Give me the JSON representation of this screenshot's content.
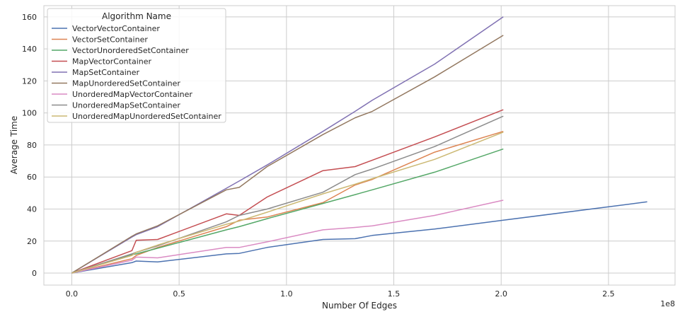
{
  "chart_data": {
    "type": "line",
    "xlabel": "Number Of Edges",
    "ylabel": "Average Time",
    "x_offset_label": "1e8",
    "xlim": [
      -0.13,
      2.81
    ],
    "ylim": [
      -7.5,
      167
    ],
    "x_ticks": [
      0.0,
      0.5,
      1.0,
      1.5,
      2.0,
      2.5
    ],
    "x_tick_labels": [
      "0.0",
      "0.5",
      "1.0",
      "1.5",
      "2.0",
      "2.5"
    ],
    "y_ticks": [
      0,
      20,
      40,
      60,
      80,
      100,
      120,
      140,
      160
    ],
    "y_tick_labels": [
      "0",
      "20",
      "40",
      "60",
      "80",
      "100",
      "120",
      "140",
      "160"
    ],
    "grid": true,
    "legend_title": "Algorithm Name",
    "legend_position": "top-left",
    "series": [
      {
        "name": "VectorVectorContainer",
        "color": "#4c72b0",
        "x": [
          0,
          0.28,
          0.3,
          0.4,
          0.72,
          0.78,
          0.91,
          1.17,
          1.32,
          1.4,
          1.69,
          2.01,
          2.68
        ],
        "y": [
          0,
          6.5,
          7.5,
          7,
          12,
          12.3,
          16,
          21,
          21.5,
          23.5,
          27.5,
          33,
          44.5
        ]
      },
      {
        "name": "VectorSetContainer",
        "color": "#dd8452",
        "x": [
          0,
          0.28,
          0.3,
          0.4,
          0.72,
          0.78,
          0.91,
          1.17,
          1.32,
          1.4,
          1.69,
          2.01
        ],
        "y": [
          0,
          9,
          11,
          16,
          29,
          33,
          35,
          44,
          55,
          58.5,
          75.5,
          88.5
        ]
      },
      {
        "name": "VectorUnorderedSetContainer",
        "color": "#55a868",
        "x": [
          0,
          0.28,
          0.3,
          0.4,
          0.72,
          0.78,
          0.91,
          1.17,
          1.32,
          1.4,
          1.69,
          2.01
        ],
        "y": [
          0,
          11.5,
          12,
          15.5,
          27,
          29,
          34,
          43.5,
          49,
          52,
          63,
          77.5
        ]
      },
      {
        "name": "MapVectorContainer",
        "color": "#c44e52",
        "x": [
          0,
          0.28,
          0.3,
          0.4,
          0.72,
          0.78,
          0.91,
          1.17,
          1.32,
          1.4,
          1.69,
          2.01
        ],
        "y": [
          0,
          14,
          20.5,
          21,
          37,
          36,
          47.5,
          64,
          66.5,
          70.5,
          85,
          102
        ]
      },
      {
        "name": "MapSetContainer",
        "color": "#8172b3",
        "x": [
          0,
          0.28,
          0.3,
          0.4,
          0.72,
          0.78,
          0.91,
          1.17,
          1.32,
          1.4,
          1.69,
          2.01
        ],
        "y": [
          0,
          22.5,
          24,
          29,
          53,
          57.5,
          67.5,
          88.5,
          101,
          108,
          130.5,
          160
        ]
      },
      {
        "name": "MapUnorderedSetContainer",
        "color": "#937860",
        "x": [
          0,
          0.28,
          0.3,
          0.4,
          0.72,
          0.78,
          0.91,
          1.17,
          1.32,
          1.4,
          1.69,
          2.01
        ],
        "y": [
          0,
          23,
          24.5,
          29.5,
          52,
          53.5,
          66.5,
          86.5,
          97,
          101,
          122.5,
          148.5
        ]
      },
      {
        "name": "UnorderedMapVectorContainer",
        "color": "#da8bc3",
        "x": [
          0,
          0.28,
          0.3,
          0.4,
          0.72,
          0.78,
          0.91,
          1.17,
          1.32,
          1.4,
          1.69,
          2.01
        ],
        "y": [
          0,
          8,
          10,
          9.5,
          16,
          16,
          19.5,
          27,
          28.5,
          29.5,
          36,
          45.5
        ]
      },
      {
        "name": "UnorderedMapSetContainer",
        "color": "#8c8c8c",
        "x": [
          0,
          0.28,
          0.3,
          0.4,
          0.72,
          0.78,
          0.91,
          1.17,
          1.32,
          1.4,
          1.69,
          2.01
        ],
        "y": [
          0,
          12,
          13,
          17,
          32,
          36,
          40,
          50.5,
          61.5,
          65,
          79,
          98
        ]
      },
      {
        "name": "UnorderedMapUnorderedSetContainer",
        "color": "#ccb974",
        "x": [
          0,
          0.28,
          0.3,
          0.4,
          0.72,
          0.78,
          0.91,
          1.17,
          1.32,
          1.4,
          1.69,
          2.01
        ],
        "y": [
          0,
          11,
          13,
          17.5,
          30.5,
          32.5,
          38,
          49.5,
          55.5,
          59,
          71,
          88
        ]
      }
    ]
  }
}
